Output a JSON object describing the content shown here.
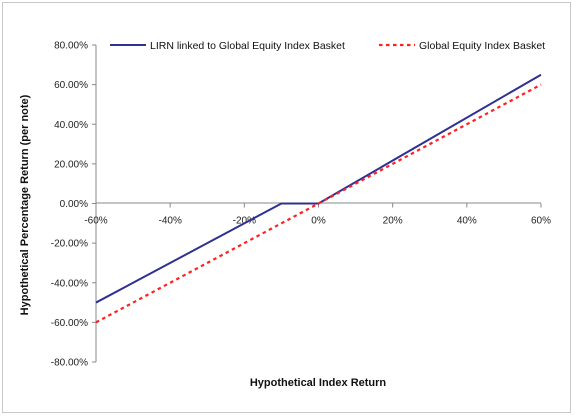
{
  "chart_data": {
    "type": "line",
    "xlabel": "Hypothetical Index Return",
    "ylabel": "Hypothetical Percentage Return (per note)",
    "xlim": [
      -60,
      60
    ],
    "ylim": [
      -80,
      80
    ],
    "x_ticks": [
      "-60%",
      "-40%",
      "-20%",
      "0%",
      "20%",
      "40%",
      "60%"
    ],
    "y_ticks": [
      "80.00%",
      "60.00%",
      "40.00%",
      "20.00%",
      "0.00%",
      "-20.00%",
      "-40.00%",
      "-60.00%",
      "-80.00%"
    ],
    "grid": false,
    "legend_position": "top",
    "series": [
      {
        "name": "LIRN linked to Global Equity Index Basket",
        "style": "solid",
        "color": "#2e3192",
        "points": [
          [
            -60,
            -50
          ],
          [
            -10,
            0
          ],
          [
            0,
            0
          ],
          [
            60,
            65
          ]
        ]
      },
      {
        "name": "Global Equity Index Basket",
        "style": "dotted",
        "color": "#ff2020",
        "points": [
          [
            -60,
            -60
          ],
          [
            60,
            60
          ]
        ]
      }
    ]
  }
}
